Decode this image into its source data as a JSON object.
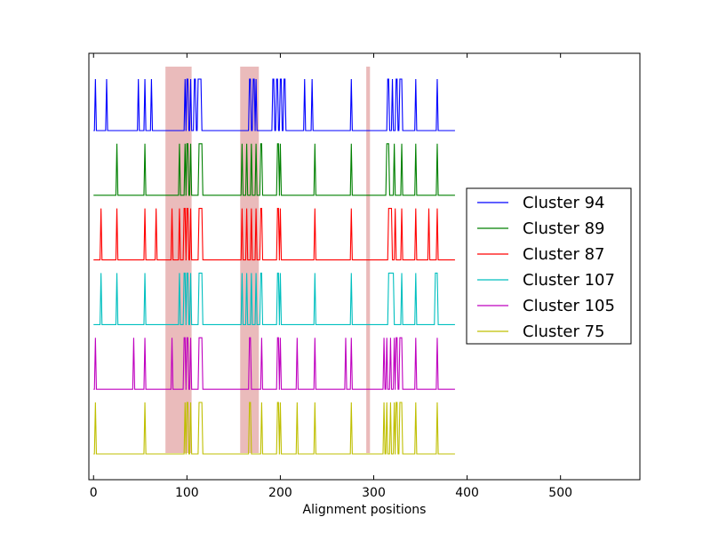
{
  "chart_data": {
    "type": "line",
    "title": "",
    "xlabel": "Alignment positions",
    "ylabel": "",
    "xlim": [
      -5,
      585
    ],
    "xticks": [
      0,
      100,
      200,
      300,
      400,
      500
    ],
    "x_end": 387,
    "grid": false,
    "legend_position": "right",
    "highlight_regions": [
      {
        "x0": 77,
        "x1": 105
      },
      {
        "x0": 157,
        "x1": 177
      },
      {
        "x0": 292,
        "x1": 296
      }
    ],
    "highlight_color": "#e8b4b4",
    "series": [
      {
        "name": "Cluster 94",
        "color": "#0000ff",
        "spikes": [
          [
            2,
            2
          ],
          [
            14,
            14
          ],
          [
            48,
            48
          ],
          [
            55,
            55
          ],
          [
            62,
            62
          ],
          [
            98,
            98
          ],
          [
            100,
            101
          ],
          [
            104,
            104
          ],
          [
            108,
            109
          ],
          [
            112,
            115
          ],
          [
            167,
            168
          ],
          [
            171,
            172
          ],
          [
            174,
            174
          ],
          [
            192,
            193
          ],
          [
            196,
            197
          ],
          [
            200,
            201
          ],
          [
            204,
            205
          ],
          [
            226,
            226
          ],
          [
            234,
            234
          ],
          [
            276,
            276
          ],
          [
            315,
            316
          ],
          [
            320,
            320
          ],
          [
            324,
            325
          ],
          [
            328,
            330
          ],
          [
            345,
            345
          ],
          [
            368,
            368
          ]
        ]
      },
      {
        "name": "Cluster 89",
        "color": "#008000",
        "spikes": [
          [
            25,
            25
          ],
          [
            55,
            55
          ],
          [
            92,
            92
          ],
          [
            98,
            98
          ],
          [
            100,
            101
          ],
          [
            104,
            104
          ],
          [
            113,
            116
          ],
          [
            159,
            159
          ],
          [
            164,
            164
          ],
          [
            169,
            169
          ],
          [
            174,
            174
          ],
          [
            179,
            180
          ],
          [
            197,
            198
          ],
          [
            200,
            200
          ],
          [
            237,
            237
          ],
          [
            276,
            276
          ],
          [
            314,
            316
          ],
          [
            322,
            322
          ],
          [
            330,
            330
          ],
          [
            345,
            345
          ],
          [
            368,
            368
          ]
        ]
      },
      {
        "name": "Cluster 87",
        "color": "#ff0000",
        "spikes": [
          [
            8,
            8
          ],
          [
            25,
            25
          ],
          [
            55,
            55
          ],
          [
            67,
            67
          ],
          [
            84,
            84
          ],
          [
            92,
            92
          ],
          [
            97,
            98
          ],
          [
            100,
            101
          ],
          [
            104,
            104
          ],
          [
            113,
            116
          ],
          [
            159,
            159
          ],
          [
            164,
            164
          ],
          [
            169,
            169
          ],
          [
            174,
            174
          ],
          [
            179,
            180
          ],
          [
            197,
            198
          ],
          [
            200,
            200
          ],
          [
            237,
            237
          ],
          [
            276,
            276
          ],
          [
            316,
            319
          ],
          [
            323,
            323
          ],
          [
            330,
            330
          ],
          [
            345,
            345
          ],
          [
            359,
            359
          ],
          [
            368,
            368
          ]
        ]
      },
      {
        "name": "Cluster 107",
        "color": "#00bfbf",
        "spikes": [
          [
            8,
            8
          ],
          [
            25,
            25
          ],
          [
            55,
            55
          ],
          [
            92,
            92
          ],
          [
            97,
            98
          ],
          [
            100,
            101
          ],
          [
            104,
            104
          ],
          [
            113,
            116
          ],
          [
            159,
            159
          ],
          [
            164,
            164
          ],
          [
            169,
            169
          ],
          [
            174,
            174
          ],
          [
            179,
            180
          ],
          [
            197,
            198
          ],
          [
            200,
            200
          ],
          [
            237,
            237
          ],
          [
            276,
            276
          ],
          [
            316,
            321
          ],
          [
            330,
            330
          ],
          [
            345,
            345
          ],
          [
            366,
            368
          ]
        ]
      },
      {
        "name": "Cluster 105",
        "color": "#bf00bf",
        "spikes": [
          [
            2,
            2
          ],
          [
            43,
            43
          ],
          [
            55,
            55
          ],
          [
            84,
            84
          ],
          [
            97,
            98
          ],
          [
            100,
            101
          ],
          [
            104,
            104
          ],
          [
            113,
            116
          ],
          [
            167,
            168
          ],
          [
            180,
            180
          ],
          [
            197,
            198
          ],
          [
            200,
            200
          ],
          [
            218,
            218
          ],
          [
            237,
            237
          ],
          [
            270,
            270
          ],
          [
            276,
            276
          ],
          [
            311,
            311
          ],
          [
            314,
            314
          ],
          [
            318,
            318
          ],
          [
            322,
            322
          ],
          [
            324,
            325
          ],
          [
            328,
            330
          ],
          [
            345,
            345
          ],
          [
            368,
            368
          ]
        ]
      },
      {
        "name": "Cluster 75",
        "color": "#bfbf00",
        "spikes": [
          [
            2,
            2
          ],
          [
            55,
            55
          ],
          [
            98,
            98
          ],
          [
            100,
            101
          ],
          [
            104,
            104
          ],
          [
            113,
            116
          ],
          [
            167,
            168
          ],
          [
            180,
            180
          ],
          [
            197,
            198
          ],
          [
            200,
            200
          ],
          [
            218,
            218
          ],
          [
            237,
            237
          ],
          [
            276,
            276
          ],
          [
            311,
            311
          ],
          [
            314,
            314
          ],
          [
            318,
            318
          ],
          [
            322,
            322
          ],
          [
            324,
            325
          ],
          [
            328,
            330
          ],
          [
            345,
            345
          ],
          [
            368,
            368
          ]
        ]
      }
    ]
  }
}
